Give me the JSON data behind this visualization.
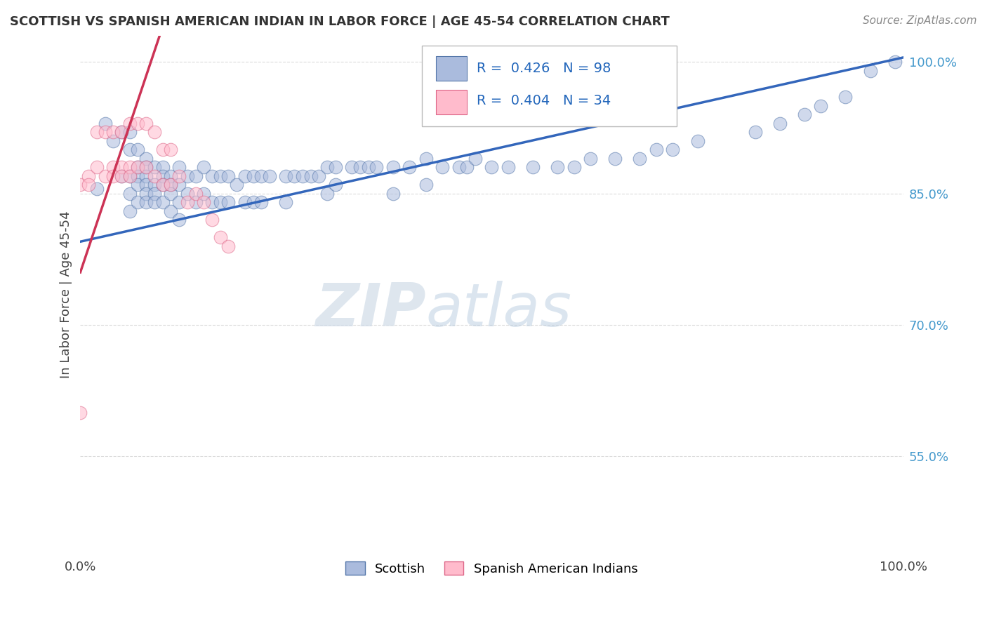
{
  "title": "SCOTTISH VS SPANISH AMERICAN INDIAN IN LABOR FORCE | AGE 45-54 CORRELATION CHART",
  "source": "Source: ZipAtlas.com",
  "ylabel": "In Labor Force | Age 45-54",
  "xlim": [
    0.0,
    1.0
  ],
  "ylim": [
    0.44,
    1.03
  ],
  "grid_color": "#cccccc",
  "background_color": "#ffffff",
  "blue_color": "#aabbdd",
  "blue_edge": "#5577aa",
  "pink_color": "#ffbbcc",
  "pink_edge": "#dd6688",
  "blue_trend_color": "#3366bb",
  "pink_trend_color": "#cc3355",
  "R_blue": 0.426,
  "N_blue": 98,
  "R_pink": 0.404,
  "N_pink": 34,
  "legend_label_blue": "Scottish",
  "legend_label_pink": "Spanish American Indians",
  "watermark_zip": "ZIP",
  "watermark_atlas": "atlas",
  "blue_scatter_x": [
    0.02,
    0.03,
    0.04,
    0.05,
    0.05,
    0.06,
    0.06,
    0.06,
    0.06,
    0.06,
    0.07,
    0.07,
    0.07,
    0.07,
    0.07,
    0.08,
    0.08,
    0.08,
    0.08,
    0.08,
    0.08,
    0.09,
    0.09,
    0.09,
    0.09,
    0.1,
    0.1,
    0.1,
    0.1,
    0.11,
    0.11,
    0.11,
    0.11,
    0.12,
    0.12,
    0.12,
    0.12,
    0.13,
    0.13,
    0.14,
    0.14,
    0.15,
    0.15,
    0.16,
    0.16,
    0.17,
    0.17,
    0.18,
    0.18,
    0.19,
    0.2,
    0.2,
    0.21,
    0.21,
    0.22,
    0.22,
    0.23,
    0.25,
    0.25,
    0.26,
    0.27,
    0.28,
    0.29,
    0.3,
    0.3,
    0.31,
    0.31,
    0.33,
    0.34,
    0.35,
    0.36,
    0.38,
    0.38,
    0.4,
    0.42,
    0.42,
    0.44,
    0.46,
    0.47,
    0.48,
    0.5,
    0.52,
    0.55,
    0.58,
    0.6,
    0.62,
    0.65,
    0.68,
    0.7,
    0.72,
    0.75,
    0.82,
    0.85,
    0.88,
    0.9,
    0.93,
    0.96,
    0.99
  ],
  "blue_scatter_y": [
    0.855,
    0.93,
    0.91,
    0.92,
    0.87,
    0.92,
    0.9,
    0.87,
    0.85,
    0.83,
    0.9,
    0.88,
    0.87,
    0.86,
    0.84,
    0.89,
    0.88,
    0.87,
    0.86,
    0.85,
    0.84,
    0.88,
    0.86,
    0.85,
    0.84,
    0.88,
    0.87,
    0.86,
    0.84,
    0.87,
    0.86,
    0.85,
    0.83,
    0.88,
    0.86,
    0.84,
    0.82,
    0.87,
    0.85,
    0.87,
    0.84,
    0.88,
    0.85,
    0.87,
    0.84,
    0.87,
    0.84,
    0.87,
    0.84,
    0.86,
    0.87,
    0.84,
    0.87,
    0.84,
    0.87,
    0.84,
    0.87,
    0.87,
    0.84,
    0.87,
    0.87,
    0.87,
    0.87,
    0.88,
    0.85,
    0.88,
    0.86,
    0.88,
    0.88,
    0.88,
    0.88,
    0.88,
    0.85,
    0.88,
    0.89,
    0.86,
    0.88,
    0.88,
    0.88,
    0.89,
    0.88,
    0.88,
    0.88,
    0.88,
    0.88,
    0.89,
    0.89,
    0.89,
    0.9,
    0.9,
    0.91,
    0.92,
    0.93,
    0.94,
    0.95,
    0.96,
    0.99,
    1.0
  ],
  "pink_scatter_x": [
    0.0,
    0.0,
    0.01,
    0.01,
    0.02,
    0.02,
    0.03,
    0.03,
    0.04,
    0.04,
    0.04,
    0.05,
    0.05,
    0.05,
    0.06,
    0.06,
    0.06,
    0.07,
    0.07,
    0.08,
    0.08,
    0.09,
    0.09,
    0.1,
    0.1,
    0.11,
    0.11,
    0.12,
    0.13,
    0.14,
    0.15,
    0.16,
    0.17,
    0.18
  ],
  "pink_scatter_y": [
    0.6,
    0.86,
    0.87,
    0.86,
    0.92,
    0.88,
    0.92,
    0.87,
    0.92,
    0.88,
    0.87,
    0.92,
    0.88,
    0.87,
    0.93,
    0.88,
    0.87,
    0.93,
    0.88,
    0.93,
    0.88,
    0.92,
    0.87,
    0.9,
    0.86,
    0.9,
    0.86,
    0.87,
    0.84,
    0.85,
    0.84,
    0.82,
    0.8,
    0.79
  ]
}
